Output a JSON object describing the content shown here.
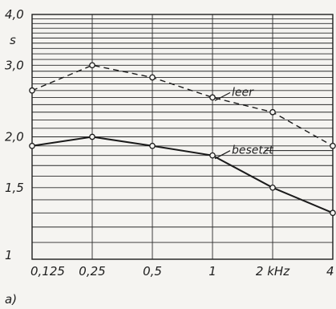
{
  "chart_data": {
    "type": "line",
    "panel_label": "a)",
    "y_unit": "s",
    "x_scale": "log",
    "y_scale": "log",
    "x_ticks": [
      "0,125",
      "0,25",
      "0,5",
      "1",
      "2 kHz",
      "4"
    ],
    "x_values": [
      0.125,
      0.25,
      0.5,
      1,
      2,
      4
    ],
    "y_ticks": [
      "1",
      "1,5",
      "2,0",
      "3,0",
      "4,0"
    ],
    "y_tick_values": [
      1,
      1.5,
      2,
      3,
      4
    ],
    "ylim": [
      1,
      4
    ],
    "grid": true,
    "series": [
      {
        "name": "leer",
        "style": "dashed",
        "x": [
          0.125,
          0.25,
          0.5,
          1,
          2,
          4
        ],
        "values": [
          2.6,
          3.0,
          2.8,
          2.5,
          2.3,
          1.9
        ]
      },
      {
        "name": "besetzt",
        "style": "solid",
        "x": [
          0.125,
          0.25,
          0.5,
          1,
          2,
          4
        ],
        "values": [
          1.9,
          2.0,
          1.9,
          1.8,
          1.5,
          1.3
        ]
      }
    ]
  }
}
